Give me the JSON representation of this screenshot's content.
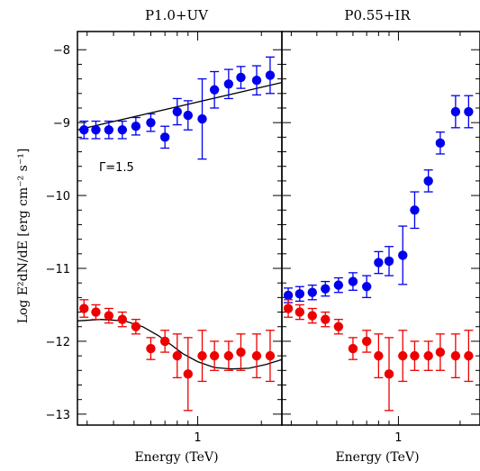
{
  "chart_data": {
    "type": "scatter",
    "xlabel": "Energy (TeV)",
    "ylabel": "Log E²dN/dE [erg cm⁻² s⁻¹]",
    "xscale": "log",
    "xlim": [
      0.27,
      2.5
    ],
    "ylim": [
      -13.15,
      -7.75
    ],
    "yticks": [
      -8,
      -9,
      -10,
      -11,
      -12,
      -13
    ],
    "ytick_labels": [
      "−8",
      "−9",
      "−10",
      "−11",
      "−12",
      "−13"
    ],
    "xticks": [
      1
    ],
    "xtick_labels": [
      "1"
    ],
    "grid": false,
    "colors": {
      "blue": "#0000ee",
      "red": "#ee0000",
      "line": "#000000"
    },
    "panels": [
      {
        "title": "P1.0+UV",
        "annotation": "Γ=1.5",
        "series": [
          {
            "color": "blue",
            "x": [
              0.29,
              0.33,
              0.38,
              0.44,
              0.51,
              0.6,
              0.7,
              0.8,
              0.9,
              1.05,
              1.2,
              1.4,
              1.6,
              1.9,
              2.2
            ],
            "y": [
              -9.1,
              -9.1,
              -9.1,
              -9.1,
              -9.05,
              -9.0,
              -9.2,
              -8.85,
              -8.9,
              -8.95,
              -8.55,
              -8.47,
              -8.38,
              -8.42,
              -8.35
            ],
            "yerr": [
              0.12,
              0.12,
              0.12,
              0.12,
              0.12,
              0.12,
              0.15,
              0.18,
              0.2,
              0.55,
              0.25,
              0.2,
              0.15,
              0.2,
              0.25
            ]
          },
          {
            "color": "red",
            "x": [
              0.29,
              0.33,
              0.38,
              0.44,
              0.51,
              0.6,
              0.7,
              0.8,
              0.9,
              1.05,
              1.2,
              1.4,
              1.6,
              1.9,
              2.2
            ],
            "y": [
              -11.55,
              -11.6,
              -11.65,
              -11.7,
              -11.8,
              -12.1,
              -12.0,
              -12.2,
              -12.45,
              -12.2,
              -12.2,
              -12.2,
              -12.15,
              -12.2,
              -12.2
            ],
            "yerr": [
              0.12,
              0.1,
              0.1,
              0.1,
              0.1,
              0.15,
              0.15,
              0.3,
              0.5,
              0.35,
              0.2,
              0.2,
              0.25,
              0.3,
              0.35
            ]
          }
        ],
        "curves": [
          {
            "color": "line",
            "x": [
              0.27,
              2.5
            ],
            "y": [
              -9.1,
              -8.45
            ]
          },
          {
            "color": "line",
            "x": [
              0.27,
              0.35,
              0.45,
              0.55,
              0.65,
              0.75,
              0.85,
              1.0,
              1.2,
              1.45,
              1.75,
              2.1,
              2.5
            ],
            "y": [
              -11.72,
              -11.7,
              -11.72,
              -11.8,
              -11.92,
              -12.05,
              -12.17,
              -12.28,
              -12.36,
              -12.38,
              -12.37,
              -12.32,
              -12.25
            ]
          }
        ]
      },
      {
        "title": "P0.55+IR",
        "annotation": "",
        "series": [
          {
            "color": "blue",
            "x": [
              0.29,
              0.33,
              0.38,
              0.44,
              0.51,
              0.6,
              0.7,
              0.8,
              0.9,
              1.05,
              1.2,
              1.4,
              1.6,
              1.9,
              2.2
            ],
            "y": [
              -11.37,
              -11.35,
              -11.33,
              -11.28,
              -11.23,
              -11.18,
              -11.25,
              -10.92,
              -10.9,
              -10.82,
              -10.2,
              -9.8,
              -9.28,
              -8.85,
              -8.85
            ],
            "yerr": [
              0.1,
              0.1,
              0.1,
              0.1,
              0.1,
              0.12,
              0.15,
              0.15,
              0.2,
              0.4,
              0.25,
              0.15,
              0.15,
              0.22,
              0.22
            ]
          },
          {
            "color": "red",
            "x": [
              0.29,
              0.33,
              0.38,
              0.44,
              0.51,
              0.6,
              0.7,
              0.8,
              0.9,
              1.05,
              1.2,
              1.4,
              1.6,
              1.9,
              2.2
            ],
            "y": [
              -11.55,
              -11.6,
              -11.65,
              -11.7,
              -11.8,
              -12.1,
              -12.0,
              -12.2,
              -12.45,
              -12.2,
              -12.2,
              -12.2,
              -12.15,
              -12.2,
              -12.2
            ],
            "yerr": [
              0.12,
              0.1,
              0.1,
              0.1,
              0.1,
              0.15,
              0.15,
              0.3,
              0.5,
              0.35,
              0.2,
              0.2,
              0.25,
              0.3,
              0.35
            ]
          }
        ],
        "curves": []
      }
    ]
  }
}
